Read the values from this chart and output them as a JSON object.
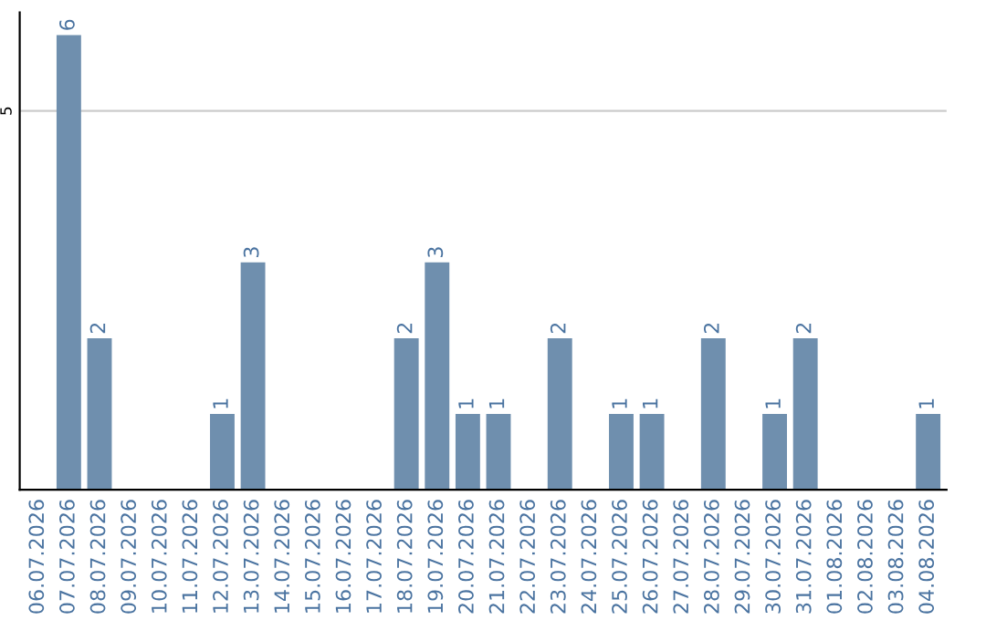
{
  "chart_data": {
    "type": "bar",
    "categories": [
      "06.07.2026",
      "07.07.2026",
      "08.07.2026",
      "09.07.2026",
      "10.07.2026",
      "11.07.2026",
      "12.07.2026",
      "13.07.2026",
      "14.07.2026",
      "15.07.2026",
      "16.07.2026",
      "17.07.2026",
      "18.07.2026",
      "19.07.2026",
      "20.07.2026",
      "21.07.2026",
      "22.07.2026",
      "23.07.2026",
      "24.07.2026",
      "25.07.2026",
      "26.07.2026",
      "27.07.2026",
      "28.07.2026",
      "29.07.2026",
      "30.07.2026",
      "31.07.2026",
      "01.08.2026",
      "02.08.2026",
      "03.08.2026",
      "04.08.2026"
    ],
    "values": [
      0,
      6,
      2,
      0,
      0,
      0,
      1,
      3,
      0,
      0,
      0,
      0,
      2,
      3,
      1,
      1,
      0,
      2,
      0,
      1,
      1,
      0,
      2,
      0,
      1,
      2,
      0,
      0,
      0,
      1
    ],
    "value_labels": [
      null,
      "6",
      "2",
      null,
      null,
      null,
      "1",
      "3",
      null,
      null,
      null,
      null,
      "2",
      "3",
      "1",
      "1",
      null,
      "2",
      null,
      "1",
      "1",
      null,
      "2",
      null,
      "1",
      "2",
      null,
      null,
      null,
      "1"
    ],
    "color": "#6f8fae",
    "ylim": [
      0,
      6.3
    ],
    "yticks": [
      5
    ],
    "grid": "y"
  }
}
